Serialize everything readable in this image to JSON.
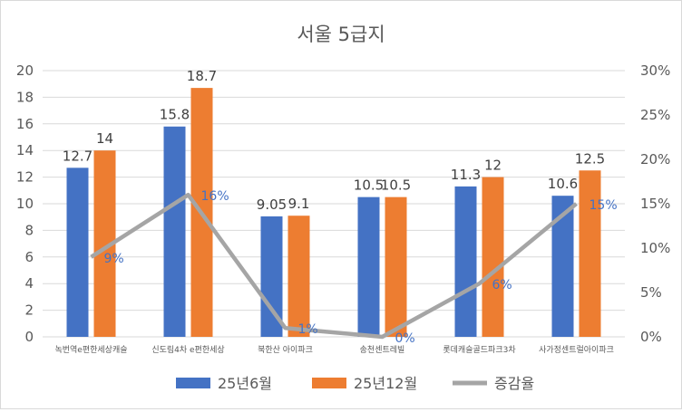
{
  "chart_data": {
    "type": "bar",
    "title": "서울 5급지",
    "categories": [
      "녹번역e편한세상캐슬",
      "신도림4차 e편한세상",
      "북한산 아이파크",
      "송천센트레빌",
      "롯데캐슬골드파크3차",
      "사가정센트럴아이파크"
    ],
    "series": [
      {
        "name": "25년6월",
        "type": "bar",
        "axis": "left",
        "color": "#4472c4",
        "values": [
          12.7,
          15.8,
          9.05,
          10.5,
          11.3,
          10.6
        ],
        "labels": [
          "12.7",
          "15.8",
          "9.05",
          "10.5",
          "11.3",
          "10.6"
        ]
      },
      {
        "name": "25년12월",
        "type": "bar",
        "axis": "left",
        "color": "#ed7d31",
        "values": [
          14,
          18.7,
          9.1,
          10.5,
          12,
          12.5
        ],
        "labels": [
          "14",
          "18.7",
          "9.1",
          "10.5",
          "12",
          "12.5"
        ]
      },
      {
        "name": "증감율",
        "type": "line",
        "axis": "right",
        "color": "#a5a5a5",
        "values": [
          9,
          16,
          1,
          0,
          6,
          15
        ],
        "labels": [
          "9%",
          "16%",
          "1%",
          "0%",
          "6%",
          "15%"
        ]
      }
    ],
    "y_left": {
      "min": 0,
      "max": 20,
      "step": 2,
      "ticks": [
        "0",
        "2",
        "4",
        "6",
        "8",
        "10",
        "12",
        "14",
        "16",
        "18",
        "20"
      ]
    },
    "y_right": {
      "min": 0,
      "max": 30,
      "step": 5,
      "ticks": [
        "0%",
        "5%",
        "10%",
        "15%",
        "20%",
        "25%",
        "30%"
      ]
    },
    "grid": true,
    "legend_position": "bottom"
  }
}
